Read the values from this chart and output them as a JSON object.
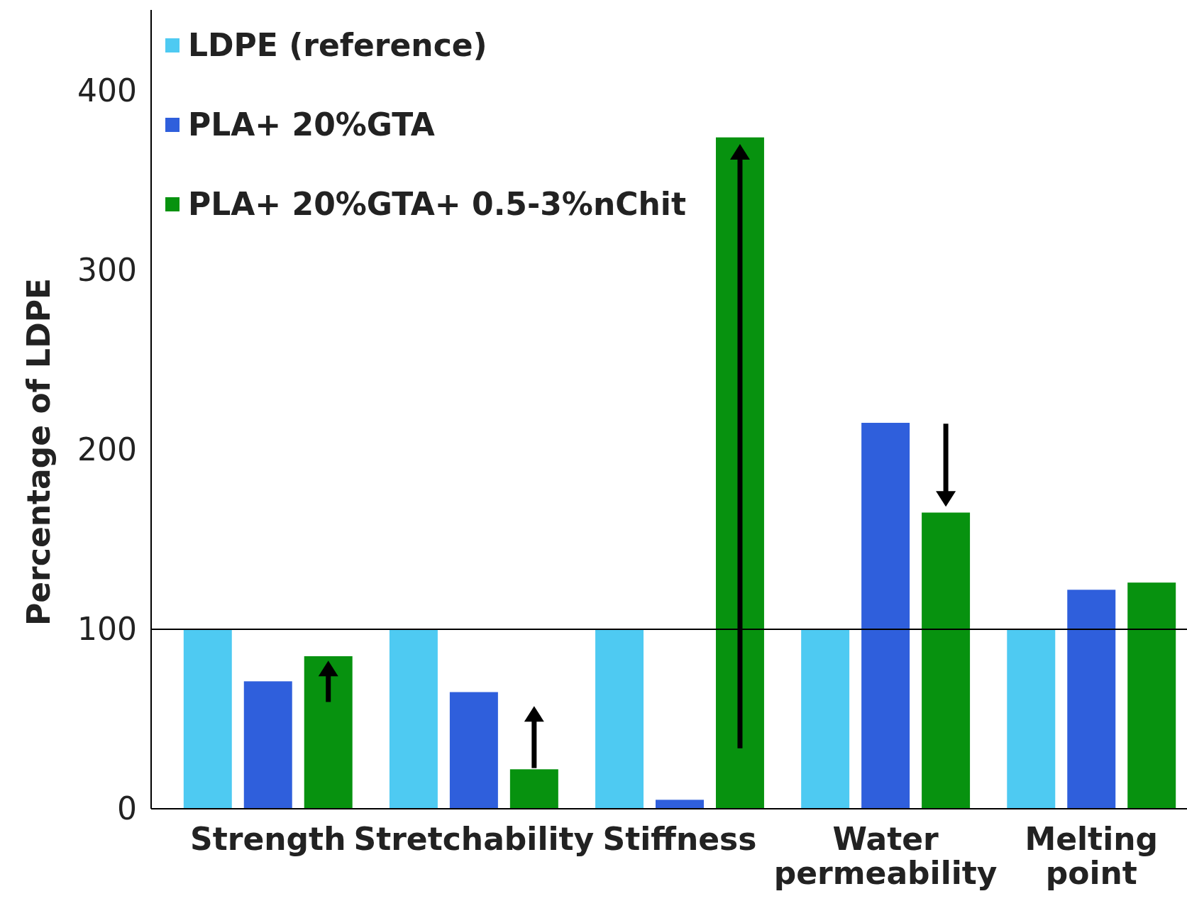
{
  "chart_data": {
    "type": "bar",
    "ylabel": "Percentage of LDPE",
    "categories": [
      "Strength",
      "Stretchability",
      "Stiffness",
      "Water permeability",
      "Melting point"
    ],
    "series": [
      {
        "name": "LDPE (reference)",
        "color": "#4ecaf2",
        "values": [
          100,
          100,
          100,
          100,
          100
        ]
      },
      {
        "name": "PLA+ 20%GTA",
        "color": "#2f5fdc",
        "values": [
          71,
          65,
          5,
          215,
          122
        ]
      },
      {
        "name": "PLA+ 20%GTA+ 0.5-3%nChit",
        "color": "#07920f",
        "values": [
          85,
          22,
          374,
          165,
          126
        ]
      }
    ],
    "ylim": [
      0,
      445
    ],
    "yticks": [
      0,
      100,
      200,
      300,
      400
    ],
    "ref_lines": [
      {
        "axis": "y",
        "value": 100,
        "color": "#000000"
      }
    ],
    "grid": false,
    "legend": "top left"
  }
}
